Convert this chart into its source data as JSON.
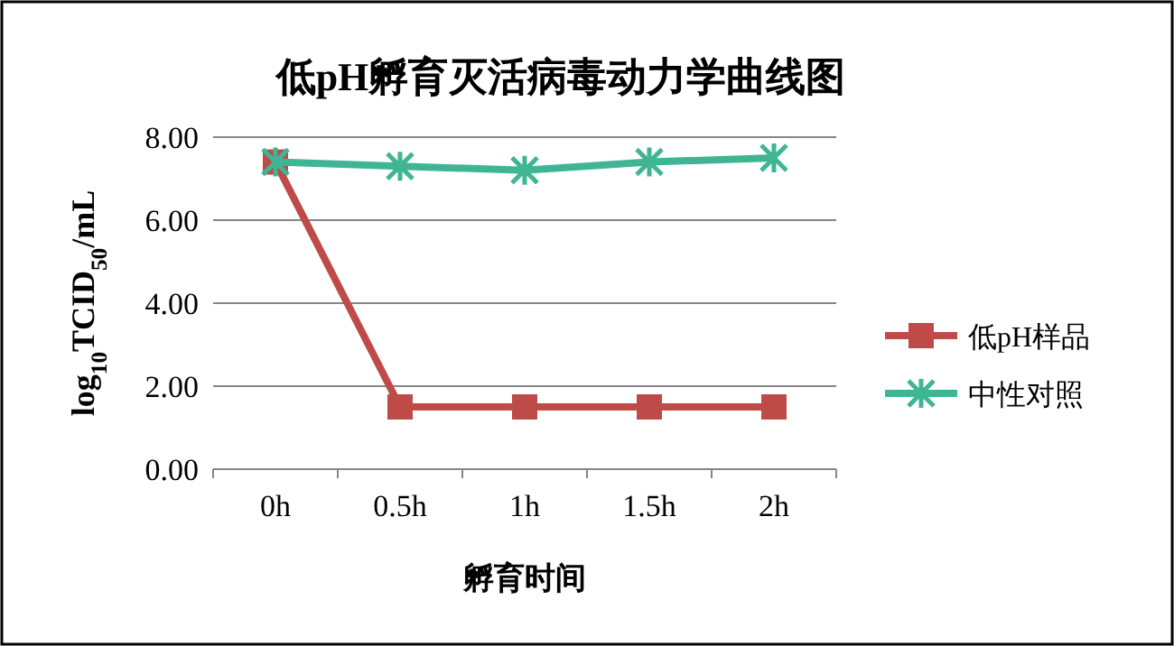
{
  "chart_data": {
    "type": "line",
    "title": "低pH孵育灭活病毒动力学曲线图",
    "xlabel": "孵育时间",
    "ylabel": "log$_{10}$TCID$_{50}$/mL",
    "categories": [
      "0h",
      "0.5h",
      "1h",
      "1.5h",
      "2h"
    ],
    "series": [
      {
        "name": "低pH样品",
        "color": "#be4b48",
        "marker": "square",
        "values": [
          7.4,
          1.5,
          1.5,
          1.5,
          1.5
        ]
      },
      {
        "name": "中性对照",
        "color": "#3fb594",
        "marker": "cross",
        "values": [
          7.4,
          7.3,
          7.2,
          7.4,
          7.5
        ]
      }
    ],
    "ylim": [
      0,
      8
    ],
    "yticks": [
      {
        "value": 0,
        "label": "0.00"
      },
      {
        "value": 2,
        "label": "2.00"
      },
      {
        "value": 4,
        "label": "4.00"
      },
      {
        "value": 6,
        "label": "6.00"
      },
      {
        "value": 8,
        "label": "8.00"
      }
    ],
    "grid": "y",
    "legend": "right",
    "line_style": "solid"
  }
}
